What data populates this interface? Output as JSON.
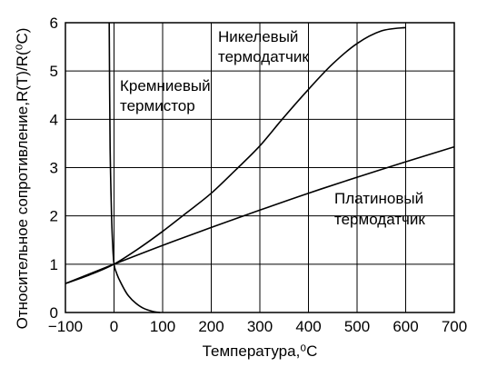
{
  "chart_data": {
    "type": "line",
    "xlabel": "Температура,⁰C",
    "ylabel": "Относительное сопротивление,R(T)/R(⁰C)",
    "xlim": [
      -100,
      700
    ],
    "ylim": [
      0,
      6
    ],
    "xticks": [
      "−100",
      "0",
      "100",
      "200",
      "300",
      "400",
      "500",
      "600",
      "700"
    ],
    "yticks": [
      "0",
      "1",
      "2",
      "3",
      "4",
      "5",
      "6"
    ],
    "grid": true,
    "annotations": [
      {
        "text": "Никелевый",
        "series": "nickel"
      },
      {
        "text": "термодатчик",
        "series": "nickel"
      },
      {
        "text": "Кремниевый",
        "series": "silicon"
      },
      {
        "text": "термистор",
        "series": "silicon"
      },
      {
        "text": "Платиновый",
        "series": "platinum"
      },
      {
        "text": "термодатчик",
        "series": "platinum"
      }
    ],
    "series": [
      {
        "id": "platinum",
        "x": [
          -100,
          0,
          100,
          200,
          300,
          400,
          500,
          600,
          700
        ],
        "y": [
          0.6,
          1.0,
          1.39,
          1.76,
          2.12,
          2.47,
          2.8,
          3.12,
          3.43
        ]
      },
      {
        "id": "nickel",
        "x": [
          -100,
          -50,
          0,
          50,
          100,
          150,
          200,
          250,
          300,
          350,
          400,
          450,
          500,
          550,
          600
        ],
        "y": [
          0.6,
          0.78,
          1.0,
          1.32,
          1.68,
          2.07,
          2.47,
          2.95,
          3.45,
          4.05,
          4.62,
          5.15,
          5.57,
          5.83,
          5.9
        ]
      },
      {
        "id": "silicon",
        "x": [
          -10,
          -8,
          -5,
          -3,
          0,
          5,
          10,
          20,
          30,
          45,
          60,
          80,
          95
        ],
        "y": [
          6.0,
          3.4,
          2.0,
          1.45,
          1.0,
          0.82,
          0.7,
          0.5,
          0.34,
          0.19,
          0.09,
          0.02,
          0.0
        ]
      }
    ]
  }
}
